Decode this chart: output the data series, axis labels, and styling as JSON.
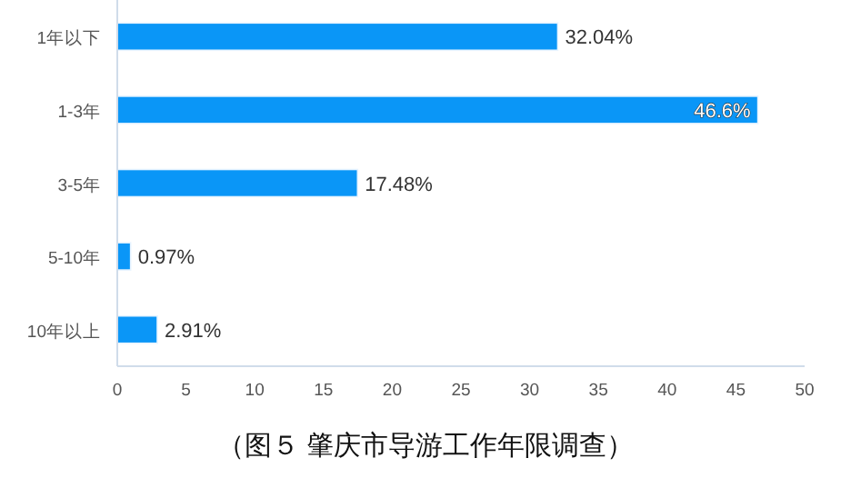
{
  "chart_data": {
    "type": "bar",
    "orientation": "horizontal",
    "categories": [
      "1年以下",
      "1-3年",
      "3-5年",
      "5-10年",
      "10年以上"
    ],
    "values": [
      32.04,
      46.6,
      17.48,
      0.97,
      2.91
    ],
    "value_labels": [
      "32.04%",
      "46.6%",
      "17.48%",
      "0.97%",
      "2.91%"
    ],
    "color": "#0a96f7",
    "xlim": [
      0,
      50
    ],
    "xticks": [
      0,
      5,
      10,
      15,
      20,
      25,
      30,
      35,
      40,
      45,
      50
    ],
    "grid": false,
    "annotations": [
      "（图５ 肇庆市导游工作年限调查）"
    ]
  }
}
